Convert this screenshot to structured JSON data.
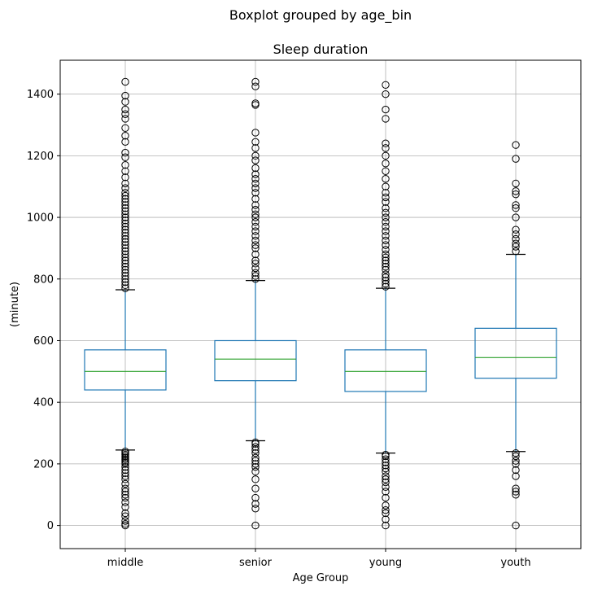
{
  "chart_data": {
    "type": "box",
    "suptitle": "Boxplot grouped by age_bin",
    "title": "Sleep duration",
    "xlabel": "Age Group",
    "ylabel": "(minute)",
    "ylim": [
      -75,
      1510
    ],
    "yticks": [
      0,
      200,
      400,
      600,
      800,
      1000,
      1200,
      1400
    ],
    "grid": true,
    "colors": {
      "box": "#1f77b4",
      "median": "#2ca02c",
      "cap": "#000000",
      "flier": "#000000",
      "grid": "#b0b0b0"
    },
    "categories": [
      "middle",
      "senior",
      "young",
      "youth"
    ],
    "boxes": [
      {
        "category": "middle",
        "q1": 440,
        "median": 500,
        "q3": 570,
        "whisker_low": 245,
        "whisker_high": 765,
        "fliers": [
          0,
          5,
          15,
          30,
          40,
          60,
          75,
          90,
          100,
          110,
          120,
          135,
          150,
          160,
          170,
          180,
          190,
          200,
          205,
          210,
          215,
          220,
          225,
          230,
          235,
          240,
          770,
          780,
          790,
          800,
          810,
          820,
          830,
          840,
          850,
          860,
          870,
          880,
          890,
          900,
          910,
          920,
          930,
          940,
          950,
          960,
          970,
          980,
          990,
          1000,
          1010,
          1020,
          1030,
          1040,
          1050,
          1060,
          1070,
          1080,
          1095,
          1110,
          1130,
          1150,
          1170,
          1195,
          1210,
          1245,
          1265,
          1290,
          1320,
          1335,
          1350,
          1375,
          1395,
          1440
        ]
      },
      {
        "category": "senior",
        "q1": 470,
        "median": 540,
        "q3": 600,
        "whisker_low": 275,
        "whisker_high": 795,
        "fliers": [
          0,
          55,
          70,
          90,
          120,
          150,
          175,
          190,
          200,
          210,
          220,
          235,
          245,
          255,
          265,
          270,
          800,
          810,
          820,
          835,
          850,
          860,
          880,
          900,
          910,
          925,
          940,
          955,
          970,
          985,
          1000,
          1010,
          1025,
          1040,
          1060,
          1080,
          1095,
          1110,
          1125,
          1140,
          1160,
          1185,
          1200,
          1225,
          1245,
          1275,
          1365,
          1370,
          1425,
          1440
        ]
      },
      {
        "category": "young",
        "q1": 435,
        "median": 500,
        "q3": 570,
        "whisker_low": 235,
        "whisker_high": 770,
        "fliers": [
          0,
          20,
          40,
          50,
          65,
          90,
          110,
          125,
          140,
          150,
          160,
          175,
          185,
          195,
          205,
          215,
          225,
          230,
          775,
          785,
          795,
          805,
          815,
          830,
          840,
          850,
          860,
          870,
          880,
          895,
          910,
          925,
          940,
          955,
          970,
          985,
          1000,
          1015,
          1030,
          1050,
          1065,
          1080,
          1100,
          1125,
          1150,
          1175,
          1200,
          1225,
          1240,
          1320,
          1350,
          1400,
          1430
        ]
      },
      {
        "category": "youth",
        "q1": 478,
        "median": 545,
        "q3": 640,
        "whisker_low": 240,
        "whisker_high": 880,
        "fliers": [
          0,
          100,
          110,
          120,
          160,
          180,
          200,
          210,
          225,
          235,
          890,
          905,
          915,
          930,
          945,
          960,
          1000,
          1030,
          1040,
          1075,
          1085,
          1110,
          1190,
          1235
        ]
      }
    ]
  }
}
